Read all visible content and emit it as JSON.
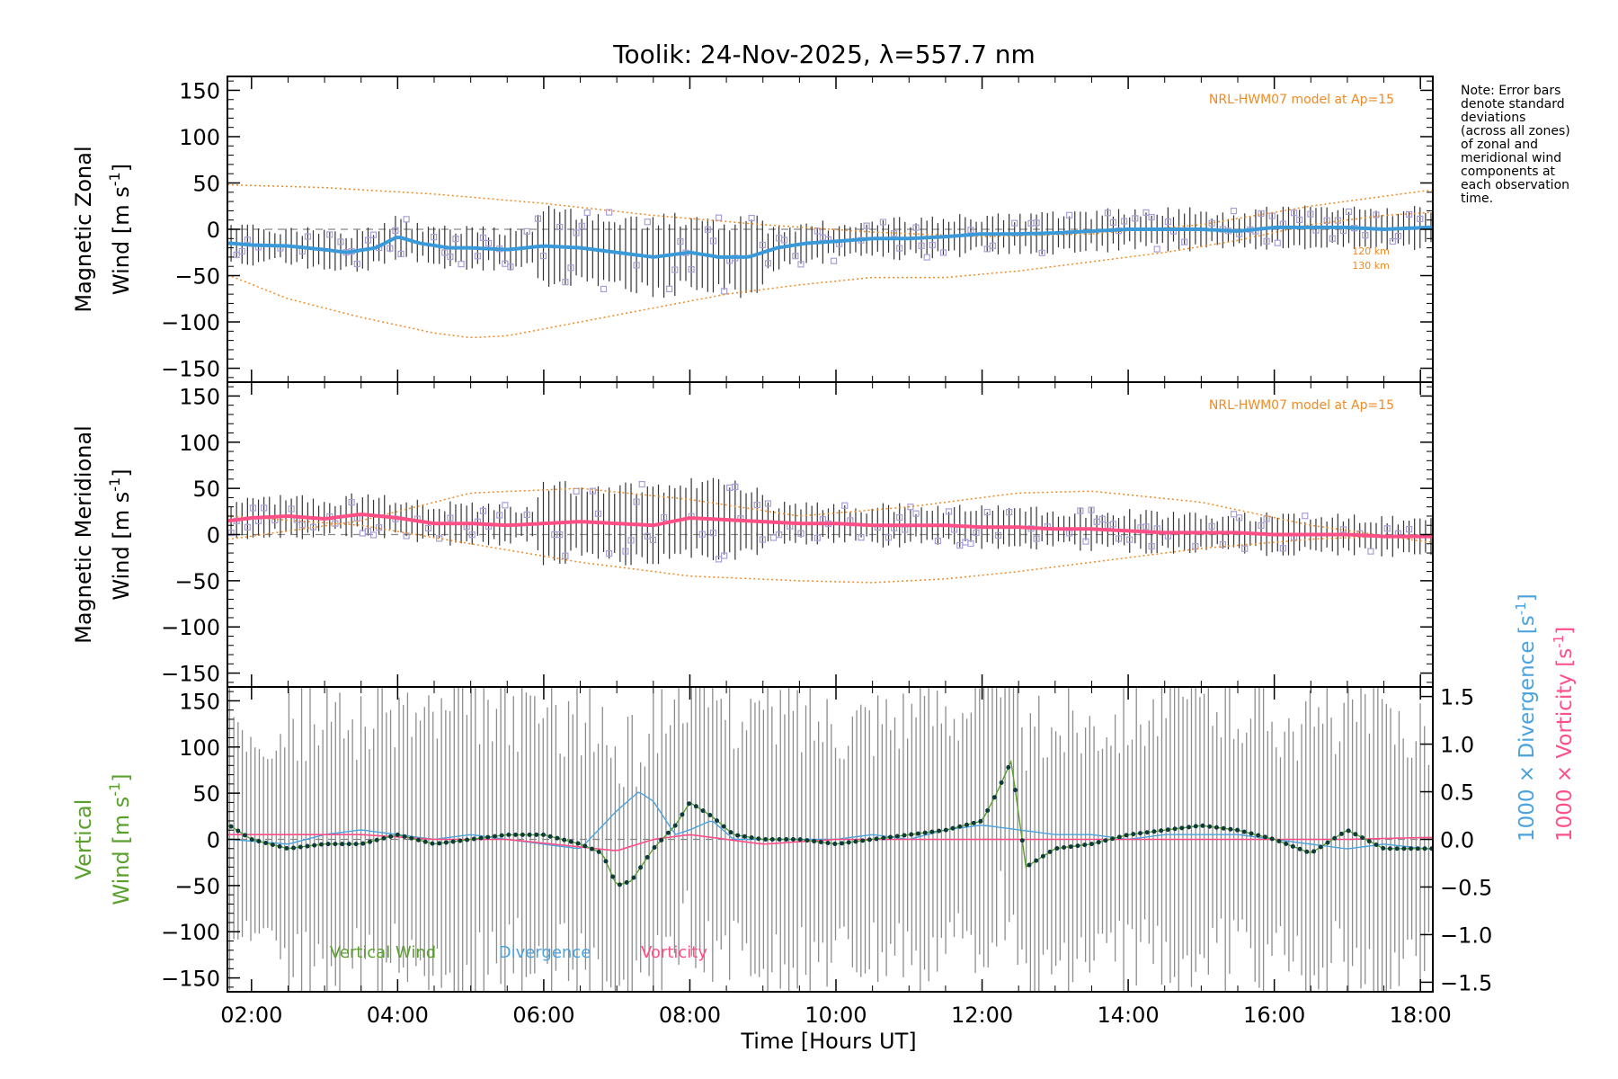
{
  "title": "Toolik: 24-Nov-2025, λ=557.7 nm",
  "note_lines": [
    "Note: Error bars",
    "denote standard",
    "deviations",
    "(across all zones)",
    "of zonal and",
    "meridional wind",
    "components at",
    "each observation",
    "time."
  ],
  "xaxis": {
    "label": "Time [Hours UT]",
    "ticks": [
      "02:00",
      "04:00",
      "06:00",
      "08:00",
      "10:00",
      "12:00",
      "14:00",
      "16:00",
      "18:00"
    ],
    "range_hours": [
      1.67,
      18.17
    ]
  },
  "yticks_wind": [
    "150",
    "100",
    "50",
    "0",
    "−50",
    "−100",
    "−150"
  ],
  "yticks_right": [
    "1.5",
    "1.0",
    "0.5",
    "0.0",
    "−0.5",
    "−1.0",
    "−1.5"
  ],
  "colors": {
    "zonal": "#3a9ad9",
    "meridional": "#ff4f86",
    "vertical": "#5aa02c",
    "divergence": "#4aa3df",
    "vorticity": "#ff4f86",
    "model": "#f08a24",
    "points": "#a99fd6",
    "errbar": "#333333",
    "ebar3": "#8c8c8c"
  },
  "chart_data": [
    {
      "type": "line",
      "title": "Magnetic Zonal Wind",
      "ylabel": "Magnetic Zonal Wind [m s⁻¹]",
      "ylabel_line1": "Magnetic Zonal",
      "ylabel_line2": "Wind [m s",
      "ylabel_sup": "-1",
      "ylabel_end": "]",
      "ylim": [
        -165,
        165
      ],
      "model_label": "NRL-HWM07 model at Ap=15",
      "model_alt_labels": [
        "120 km",
        "130 km"
      ],
      "series": [
        {
          "name": "Zonal wind (mean)",
          "x": [
            1.7,
            2.0,
            2.5,
            3.0,
            3.3,
            3.7,
            4.0,
            4.3,
            4.7,
            5.0,
            5.5,
            6.0,
            6.5,
            7.0,
            7.5,
            8.0,
            8.4,
            8.8,
            9.2,
            9.6,
            10.0,
            10.5,
            11.0,
            11.5,
            12.0,
            12.5,
            13.0,
            13.5,
            14.0,
            14.5,
            15.0,
            15.5,
            16.0,
            16.5,
            17.0,
            17.5,
            18.1
          ],
          "values": [
            -15,
            -17,
            -18,
            -22,
            -25,
            -20,
            -8,
            -15,
            -20,
            -20,
            -22,
            -18,
            -20,
            -25,
            -30,
            -25,
            -30,
            -30,
            -20,
            -15,
            -13,
            -10,
            -10,
            -8,
            -5,
            -5,
            -4,
            -2,
            0,
            0,
            0,
            -2,
            2,
            2,
            2,
            0,
            2
          ]
        },
        {
          "name": "HWM07 model",
          "x": [
            1.7,
            2.5,
            3.5,
            4.5,
            5.0,
            5.5,
            6.5,
            7.5,
            8.5,
            9.5,
            10.5,
            11.5,
            12.5,
            13.5,
            14.5,
            15.5,
            16.5,
            17.5,
            18.1
          ],
          "values": [
            -50,
            -75,
            -95,
            -112,
            -117,
            -115,
            -100,
            -85,
            -70,
            -60,
            -52,
            -52,
            -45,
            -35,
            -25,
            -12,
            5,
            15,
            18
          ]
        },
        {
          "name": "HWM07 upper envelope",
          "x": [
            1.7,
            3.0,
            4.5,
            6.0,
            7.5,
            9.0,
            10.5,
            12.0,
            13.5,
            15.0,
            16.5,
            18.1
          ],
          "values": [
            48,
            45,
            38,
            28,
            15,
            5,
            -3,
            -8,
            -5,
            5,
            25,
            42
          ]
        }
      ]
    },
    {
      "type": "line",
      "title": "Magnetic Meridional Wind",
      "ylabel": "Magnetic Meridional Wind [m s⁻¹]",
      "ylabel_line1": "Magnetic Meridional",
      "ylabel_line2": "Wind [m s",
      "ylabel_sup": "-1",
      "ylabel_end": "]",
      "ylim": [
        -165,
        165
      ],
      "model_label": "NRL-HWM07 model at Ap=15",
      "series": [
        {
          "name": "Meridional wind (mean)",
          "x": [
            1.7,
            2.0,
            2.5,
            3.0,
            3.5,
            4.0,
            4.5,
            5.0,
            5.5,
            6.0,
            6.5,
            7.0,
            7.5,
            8.0,
            8.5,
            9.0,
            9.5,
            10.0,
            10.5,
            11.0,
            11.5,
            12.0,
            12.5,
            13.0,
            13.5,
            14.0,
            14.5,
            15.0,
            15.5,
            16.0,
            16.5,
            17.0,
            17.5,
            18.1
          ],
          "values": [
            15,
            18,
            20,
            17,
            22,
            18,
            12,
            12,
            10,
            12,
            14,
            12,
            10,
            18,
            16,
            14,
            12,
            12,
            10,
            10,
            10,
            8,
            8,
            6,
            6,
            4,
            2,
            2,
            2,
            0,
            0,
            0,
            -2,
            -2
          ]
        },
        {
          "name": "HWM07 lower envelope",
          "x": [
            1.7,
            3.5,
            5.0,
            6.5,
            8.0,
            9.5,
            10.5,
            11.5,
            12.5,
            13.5,
            15.0,
            16.5,
            18.1
          ],
          "values": [
            20,
            10,
            -10,
            -30,
            -45,
            -50,
            -52,
            -48,
            -40,
            -30,
            -15,
            -5,
            0
          ]
        },
        {
          "name": "HWM07 upper envelope",
          "x": [
            1.7,
            3.5,
            5.0,
            6.5,
            8.0,
            9.5,
            11.0,
            12.5,
            13.5,
            15.0,
            16.5,
            18.1
          ],
          "values": [
            -5,
            15,
            45,
            50,
            38,
            20,
            30,
            45,
            47,
            35,
            10,
            -8
          ]
        }
      ]
    },
    {
      "type": "line",
      "title": "Vertical Wind, Divergence, Vorticity",
      "ylabel": "Vertical Wind [m s⁻¹]",
      "ylabel_line1": "Vertical",
      "ylabel_line2": "Wind [m s",
      "ylabel_sup": "-1",
      "ylabel_end": "]",
      "ylim": [
        -165,
        165
      ],
      "y2label": "1000 × Divergence [s⁻¹]",
      "y2_text": "1000 × Divergence [s",
      "y3label": "1000 × Vorticity [s⁻¹]",
      "y3_text": "1000 × Vorticity [s",
      "y2lim": [
        -1.6,
        1.6
      ],
      "legend": [
        "Vertical Wind",
        "Divergence",
        "Vorticity"
      ],
      "series": [
        {
          "name": "Vertical Wind",
          "x": [
            1.7,
            2.0,
            2.5,
            3.0,
            3.5,
            4.0,
            4.5,
            5.0,
            5.5,
            6.0,
            6.5,
            6.8,
            7.0,
            7.2,
            7.5,
            7.8,
            8.0,
            8.3,
            8.6,
            9.0,
            9.5,
            10.0,
            10.5,
            11.0,
            11.5,
            12.0,
            12.2,
            12.4,
            12.6,
            13.0,
            13.5,
            14.0,
            14.5,
            15.0,
            15.5,
            16.0,
            16.5,
            17.0,
            17.5,
            18.1
          ],
          "values": [
            15,
            0,
            -10,
            -5,
            -5,
            5,
            -5,
            0,
            5,
            5,
            -5,
            -15,
            -50,
            -45,
            -10,
            15,
            40,
            25,
            5,
            0,
            0,
            -5,
            0,
            5,
            10,
            20,
            50,
            85,
            -30,
            -10,
            -5,
            5,
            10,
            15,
            10,
            0,
            -15,
            10,
            -10,
            -10
          ]
        },
        {
          "name": "Divergence",
          "x": [
            1.7,
            2.5,
            3.0,
            3.5,
            4.0,
            4.5,
            5.0,
            5.5,
            6.0,
            6.5,
            7.0,
            7.3,
            7.5,
            7.8,
            8.0,
            8.3,
            8.6,
            9.0,
            9.5,
            10.0,
            10.5,
            11.0,
            11.5,
            12.0,
            12.5,
            13.0,
            13.5,
            14.0,
            14.5,
            15.0,
            15.5,
            16.0,
            16.5,
            17.0,
            17.5,
            18.1
          ],
          "values": [
            0.0,
            -0.05,
            0.05,
            0.1,
            0.05,
            0.0,
            0.05,
            0.0,
            -0.05,
            -0.1,
            0.3,
            0.5,
            0.4,
            0.05,
            0.1,
            0.2,
            0.0,
            0.0,
            0.0,
            0.0,
            0.05,
            0.0,
            0.1,
            0.15,
            0.1,
            0.05,
            0.05,
            0.0,
            0.05,
            0.05,
            0.05,
            0.0,
            -0.05,
            -0.1,
            -0.05,
            -0.1
          ]
        },
        {
          "name": "Vorticity",
          "x": [
            1.7,
            2.5,
            3.5,
            4.5,
            5.5,
            6.5,
            7.0,
            7.5,
            8.0,
            8.5,
            9.0,
            10.0,
            11.0,
            12.0,
            13.0,
            14.0,
            15.0,
            16.0,
            17.0,
            18.1
          ],
          "values": [
            0.05,
            0.05,
            0.05,
            0.0,
            0.0,
            -0.08,
            -0.12,
            0.0,
            0.05,
            0.0,
            -0.05,
            0.0,
            0.0,
            0.0,
            0.0,
            0.0,
            0.0,
            0.0,
            0.0,
            0.02
          ]
        }
      ]
    }
  ]
}
